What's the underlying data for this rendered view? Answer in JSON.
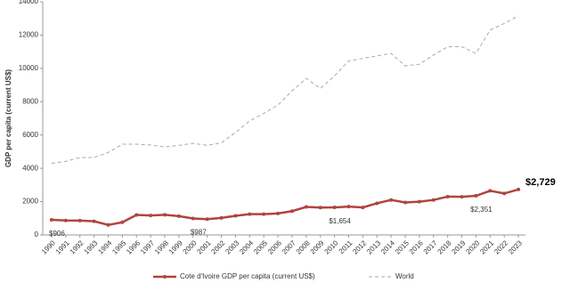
{
  "chart_data": {
    "type": "line",
    "y_label": "GDP per capita (current US$)",
    "categories": [
      "1990",
      "1991",
      "1992",
      "1993",
      "1994",
      "1995",
      "1996",
      "1997",
      "1998",
      "1999",
      "2000",
      "2001",
      "2002",
      "2003",
      "2004",
      "2005",
      "2006",
      "2007",
      "2008",
      "2009",
      "2010",
      "2011",
      "2012",
      "2013",
      "2014",
      "2015",
      "2016",
      "2017",
      "2018",
      "2019",
      "2020",
      "2021",
      "2022",
      "2023"
    ],
    "series": [
      {
        "name": "Cote d'Ivoire GDP per capita (current US$)",
        "color": "#b04440",
        "style": "solid",
        "values": [
          906,
          870,
          860,
          820,
          600,
          760,
          1200,
          1170,
          1210,
          1130,
          987,
          950,
          1020,
          1150,
          1250,
          1250,
          1290,
          1430,
          1680,
          1640,
          1654,
          1700,
          1650,
          1900,
          2100,
          1950,
          2000,
          2100,
          2300,
          2290,
          2351,
          2650,
          2490,
          2729
        ],
        "value_labels": [
          "$906",
          null,
          null,
          null,
          null,
          null,
          null,
          null,
          null,
          null,
          "$987",
          null,
          null,
          null,
          null,
          null,
          null,
          null,
          null,
          null,
          "$1,654",
          null,
          null,
          null,
          null,
          null,
          null,
          null,
          null,
          null,
          "$2,351",
          null,
          null,
          "$2,729"
        ]
      },
      {
        "name": "World",
        "color": "#aaaaaa",
        "style": "dashed",
        "values": [
          4300,
          4420,
          4650,
          4650,
          4950,
          5450,
          5450,
          5400,
          5280,
          5380,
          5500,
          5380,
          5530,
          6150,
          6850,
          7300,
          7800,
          8650,
          9400,
          8800,
          9550,
          10450,
          10600,
          10750,
          10900,
          10150,
          10250,
          10800,
          11300,
          11300,
          10900,
          12300,
          12700,
          13150
        ]
      }
    ],
    "ylim": [
      0,
      14000
    ],
    "yticks": [
      0,
      2000,
      4000,
      6000,
      8000,
      10000,
      12000,
      14000
    ],
    "grid": false
  }
}
